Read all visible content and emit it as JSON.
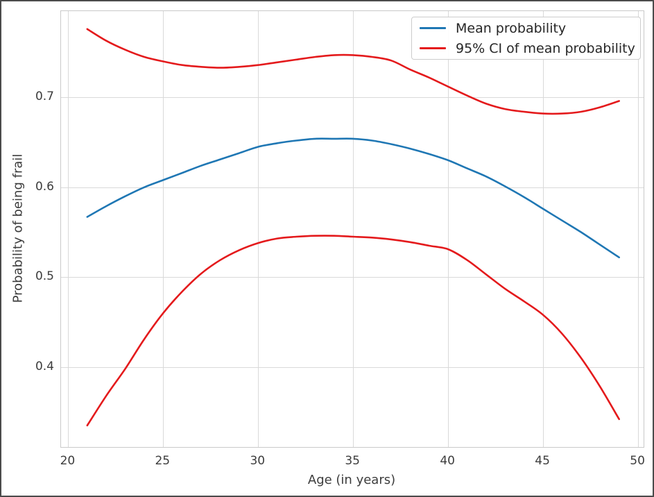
{
  "chart_data": {
    "type": "line",
    "title": "",
    "xlabel": "Age (in years)",
    "ylabel": "Probability of being frail",
    "xlim": [
      19.62,
      50.29
    ],
    "ylim": [
      0.311,
      0.796
    ],
    "x_ticks": [
      20,
      25,
      30,
      35,
      40,
      45,
      50
    ],
    "y_ticks": [
      0.4,
      0.5,
      0.6,
      0.7
    ],
    "grid": true,
    "legend_position": "upper right",
    "x": [
      21,
      22,
      23,
      24,
      25,
      26,
      27,
      28,
      29,
      30,
      31,
      32,
      33,
      34,
      35,
      36,
      37,
      38,
      39,
      40,
      41,
      42,
      43,
      44,
      45,
      46,
      47,
      48,
      49
    ],
    "series": [
      {
        "name": "Mean probability",
        "color": "#1f77b4",
        "values": [
          0.567,
          0.579,
          0.59,
          0.6,
          0.608,
          0.616,
          0.624,
          0.631,
          0.638,
          0.645,
          0.649,
          0.652,
          0.654,
          0.654,
          0.654,
          0.652,
          0.648,
          0.643,
          0.637,
          0.63,
          0.621,
          0.612,
          0.601,
          0.589,
          0.576,
          0.563,
          0.55,
          0.536,
          0.522
        ]
      },
      {
        "name": "95% CI upper bound",
        "color": "#e41a1c",
        "values": [
          0.776,
          0.763,
          0.753,
          0.745,
          0.74,
          0.736,
          0.734,
          0.733,
          0.734,
          0.736,
          0.739,
          0.742,
          0.745,
          0.747,
          0.747,
          0.745,
          0.741,
          0.731,
          0.722,
          0.712,
          0.702,
          0.693,
          0.687,
          0.684,
          0.682,
          0.682,
          0.684,
          0.689,
          0.696
        ]
      },
      {
        "name": "95% CI lower bound",
        "color": "#e41a1c",
        "values": [
          0.335,
          0.368,
          0.398,
          0.431,
          0.46,
          0.484,
          0.504,
          0.519,
          0.53,
          0.538,
          0.543,
          0.545,
          0.546,
          0.546,
          0.545,
          0.544,
          0.542,
          0.539,
          0.535,
          0.531,
          0.519,
          0.503,
          0.487,
          0.473,
          0.458,
          0.437,
          0.41,
          0.378,
          0.342
        ]
      }
    ],
    "legend": [
      {
        "label": "Mean probability",
        "color": "#1f77b4"
      },
      {
        "label": "95% CI of mean probability",
        "color": "#e41a1c"
      }
    ],
    "colors": {
      "mean_line": "#1f77b4",
      "ci_line": "#e41a1c",
      "gridline": "#d9d9d9",
      "spine": "#c9c9c9",
      "text": "#3c3c3c",
      "frame": "#4b4b4b"
    }
  }
}
